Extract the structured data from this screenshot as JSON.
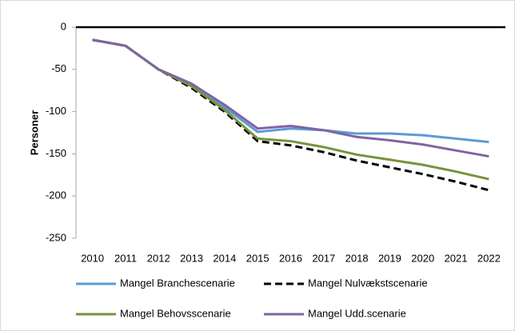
{
  "chart_data": {
    "type": "line",
    "y_label": "Personer",
    "categories": [
      "2010",
      "2011",
      "2012",
      "2013",
      "2014",
      "2015",
      "2016",
      "2017",
      "2018",
      "2019",
      "2020",
      "2021",
      "2022"
    ],
    "series": [
      {
        "name": "Mangel Branchescenarie",
        "color": "#5b9bd5",
        "dash": false,
        "values": [
          -15,
          -22,
          -50,
          -70,
          -95,
          -124,
          -120,
          -122,
          -126,
          -126,
          -128,
          -132,
          -136
        ]
      },
      {
        "name": "Mangel Nulvækstscenarie",
        "color": "#000000",
        "dash": true,
        "values": [
          -15,
          -22,
          -50,
          -72,
          -100,
          -135,
          -140,
          -148,
          -158,
          -166,
          -174,
          -183,
          -193
        ]
      },
      {
        "name": "Mangel Behovsscenarie",
        "color": "#77933c",
        "dash": false,
        "values": [
          -15,
          -22,
          -50,
          -70,
          -98,
          -132,
          -135,
          -142,
          -151,
          -157,
          -163,
          -171,
          -180
        ]
      },
      {
        "name": "Mangel Udd.scenarie",
        "color": "#8064a2",
        "dash": false,
        "values": [
          -15,
          -22,
          -50,
          -67,
          -92,
          -120,
          -117,
          -122,
          -130,
          -134,
          -139,
          -146,
          -153
        ]
      }
    ],
    "ylim": [
      -250,
      0
    ],
    "yticks": [
      -250,
      -200,
      -150,
      -100,
      -50,
      0
    ],
    "grid": false
  }
}
